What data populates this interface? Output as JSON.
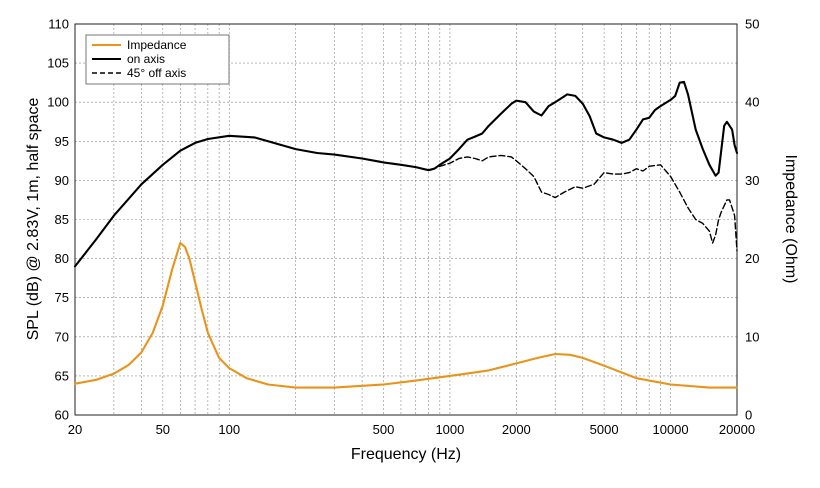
{
  "chart_data": {
    "type": "line",
    "title": "",
    "xlabel": "Frequency (Hz)",
    "ylabel": "SPL (dB) @ 2.83V, 1m, half space",
    "y2label": "Impedance (Ohm)",
    "xscale": "log",
    "xlim": [
      20,
      20000
    ],
    "ylim": [
      60,
      110
    ],
    "y2lim": [
      0,
      50
    ],
    "grid": true,
    "legend_position": "top-left",
    "x_ticks": [
      20,
      50,
      100,
      500,
      1000,
      2000,
      5000,
      10000,
      20000
    ],
    "x_tick_labels": [
      "20",
      "50",
      "100",
      "500",
      "1000",
      "2000",
      "5000",
      "10000",
      "20000"
    ],
    "y_ticks": [
      60,
      65,
      70,
      75,
      80,
      85,
      90,
      95,
      100,
      105,
      110
    ],
    "y_tick_labels": [
      "60",
      "65",
      "70",
      "75",
      "80",
      "85",
      "90",
      "95",
      "100",
      "105",
      "110"
    ],
    "y2_ticks": [
      0,
      10,
      20,
      30,
      40,
      50
    ],
    "y2_tick_labels": [
      "0",
      "10",
      "20",
      "30",
      "40",
      "50"
    ],
    "series": [
      {
        "name": "Impedance",
        "axis": "right",
        "color": "#e8941a",
        "style": "solid",
        "x": [
          20,
          25,
          30,
          35,
          40,
          45,
          50,
          55,
          60,
          63,
          66,
          70,
          75,
          80,
          90,
          100,
          120,
          150,
          200,
          300,
          500,
          700,
          1000,
          1500,
          2000,
          2500,
          3000,
          3500,
          4000,
          5000,
          7000,
          10000,
          15000,
          20000
        ],
        "values": [
          4.0,
          4.5,
          5.3,
          6.4,
          8.0,
          10.5,
          14.0,
          18.5,
          22.0,
          21.5,
          20.0,
          17.0,
          13.5,
          10.5,
          7.3,
          6.0,
          4.7,
          3.9,
          3.5,
          3.5,
          3.9,
          4.4,
          5.0,
          5.7,
          6.6,
          7.3,
          7.8,
          7.7,
          7.3,
          6.3,
          4.7,
          3.9,
          3.5,
          3.5
        ]
      },
      {
        "name": "on axis",
        "axis": "left",
        "color": "#000000",
        "style": "solid",
        "x": [
          20,
          25,
          30,
          40,
          50,
          60,
          70,
          80,
          100,
          130,
          150,
          200,
          250,
          300,
          400,
          500,
          600,
          700,
          800,
          850,
          900,
          1000,
          1100,
          1200,
          1300,
          1400,
          1500,
          1700,
          1900,
          2000,
          2200,
          2400,
          2600,
          2800,
          3000,
          3400,
          3700,
          4000,
          4300,
          4600,
          5000,
          5500,
          6000,
          6500,
          7000,
          7500,
          8000,
          8500,
          9000,
          10000,
          10500,
          11000,
          11500,
          12000,
          13000,
          14000,
          15000,
          16000,
          16500,
          17000,
          17500,
          18000,
          18500,
          19000,
          19500,
          20000
        ],
        "values": [
          79.0,
          82.5,
          85.5,
          89.5,
          92.0,
          93.8,
          94.8,
          95.3,
          95.7,
          95.5,
          95.0,
          94.0,
          93.5,
          93.3,
          92.8,
          92.3,
          92.0,
          91.7,
          91.3,
          91.5,
          92.0,
          92.8,
          94.0,
          95.2,
          95.6,
          96.0,
          97.0,
          98.5,
          99.8,
          100.2,
          100.0,
          98.8,
          98.3,
          99.5,
          100.0,
          101.0,
          100.8,
          99.8,
          98.2,
          96.0,
          95.5,
          95.2,
          94.8,
          95.2,
          96.5,
          97.8,
          98.0,
          99.0,
          99.5,
          100.3,
          100.8,
          102.5,
          102.6,
          101.0,
          96.5,
          94.0,
          92.0,
          90.6,
          91.0,
          94.0,
          97.0,
          97.5,
          97.0,
          96.5,
          94.5,
          93.5
        ]
      },
      {
        "name": "45° off axis",
        "axis": "left",
        "color": "#000000",
        "style": "dashed",
        "x": [
          20,
          25,
          30,
          40,
          50,
          60,
          70,
          80,
          100,
          130,
          150,
          200,
          250,
          300,
          400,
          500,
          600,
          700,
          800,
          850,
          900,
          1000,
          1100,
          1200,
          1300,
          1400,
          1500,
          1700,
          1900,
          2000,
          2200,
          2400,
          2600,
          2800,
          3000,
          3300,
          3700,
          4000,
          4500,
          5000,
          5500,
          6000,
          6500,
          7000,
          7500,
          8000,
          9000,
          10000,
          11000,
          12000,
          13000,
          14000,
          15000,
          15500,
          16000,
          16500,
          17000,
          18000,
          18500,
          19000,
          19500,
          20000
        ],
        "values": [
          79.0,
          82.5,
          85.5,
          89.5,
          92.0,
          93.8,
          94.8,
          95.3,
          95.7,
          95.5,
          95.0,
          94.0,
          93.5,
          93.3,
          92.8,
          92.3,
          92.0,
          91.7,
          91.3,
          91.5,
          91.8,
          92.2,
          92.8,
          93.0,
          92.8,
          92.5,
          93.0,
          93.2,
          93.0,
          92.5,
          91.5,
          90.5,
          88.5,
          88.2,
          87.8,
          88.5,
          89.2,
          89.0,
          89.5,
          91.0,
          90.8,
          90.8,
          91.0,
          91.5,
          91.2,
          91.8,
          92.0,
          90.5,
          88.5,
          86.5,
          85.0,
          84.5,
          83.5,
          82.0,
          83.0,
          85.0,
          86.0,
          87.5,
          87.5,
          86.5,
          85.5,
          81.0
        ]
      }
    ]
  }
}
